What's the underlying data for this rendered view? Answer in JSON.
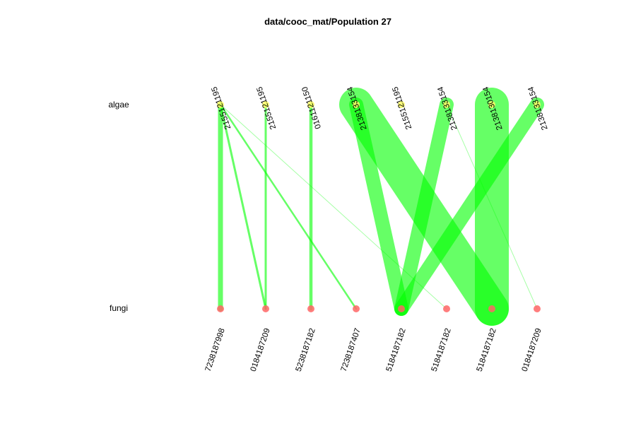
{
  "title": "data/cooc_mat/Population 27",
  "rows": {
    "top": {
      "label": "algae",
      "color": "#ffff66",
      "label_x": 0
    },
    "bottom": {
      "label": "fungi",
      "color": "#ff6666",
      "label_x": 0
    }
  },
  "top_nodes": [
    {
      "label": "2155121195"
    },
    {
      "label": "2155121195"
    },
    {
      "label": "016112115​0"
    },
    {
      "label": "2138133154"
    },
    {
      "label": "2155121195"
    },
    {
      "label": "2138133154"
    },
    {
      "label": "2138130154"
    },
    {
      "label": "2138133154"
    }
  ],
  "bottom_nodes": [
    {
      "label": "7238187998"
    },
    {
      "label": "0184187209"
    },
    {
      "label": "5238187182"
    },
    {
      "label": "7238187407"
    },
    {
      "label": "5184187182"
    },
    {
      "label": "5184187182"
    },
    {
      "label": "5184187182"
    },
    {
      "label": "0184187209"
    }
  ],
  "edge_color": "#00ff00",
  "edges": [
    {
      "from": 0,
      "to": 0,
      "weight": 7,
      "opacity": 0.6
    },
    {
      "from": 0,
      "to": 1,
      "weight": 3,
      "opacity": 0.6
    },
    {
      "from": 0,
      "to": 3,
      "weight": 2.5,
      "opacity": 0.6
    },
    {
      "from": 0,
      "to": 5,
      "weight": 1,
      "opacity": 0.35
    },
    {
      "from": 1,
      "to": 1,
      "weight": 3,
      "opacity": 0.6
    },
    {
      "from": 2,
      "to": 2,
      "weight": 4.5,
      "opacity": 0.6
    },
    {
      "from": 3,
      "to": 4,
      "weight": 20,
      "opacity": 0.6
    },
    {
      "from": 3,
      "to": 6,
      "weight": 48,
      "opacity": 0.6
    },
    {
      "from": 5,
      "to": 4,
      "weight": 20,
      "opacity": 0.6
    },
    {
      "from": 5,
      "to": 7,
      "weight": 1,
      "opacity": 0.35
    },
    {
      "from": 6,
      "to": 6,
      "weight": 48,
      "opacity": 0.6
    },
    {
      "from": 7,
      "to": 4,
      "weight": 20,
      "opacity": 0.6
    }
  ]
}
